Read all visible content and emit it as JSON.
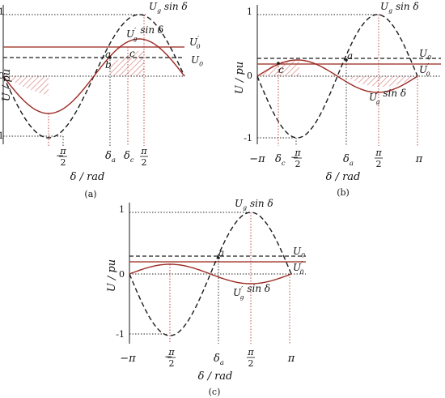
{
  "panels": [
    {
      "id": "a",
      "caption": "(a)",
      "y_axis_label": "U / pu",
      "x_axis_label": "δ / rad",
      "tick_one": "1",
      "tick_zero": "0",
      "tick_minus_one": "-1",
      "x_ticks": [
        {
          "key": "neg_half_pi",
          "num": "π",
          "den": "2",
          "sign": "−"
        },
        {
          "key": "delta_a",
          "text": "δ",
          "sub": "a"
        },
        {
          "key": "delta_c",
          "text": "δ",
          "sub": "c"
        },
        {
          "key": "half_pi",
          "num": "π",
          "den": "2",
          "sign": ""
        }
      ],
      "curve_labels": {
        "ug": {
          "main": "U",
          "sub": "g",
          "tail": " sin δ"
        },
        "ugp": {
          "main": "U",
          "sub": "g",
          "sup": "′",
          "tail": " sin δ"
        },
        "u0p": {
          "main": "U",
          "sub": "0",
          "sup": "′"
        },
        "u0": {
          "main": "U",
          "sub": "0"
        }
      },
      "points": {
        "a": "a",
        "b": "b",
        "c": "c"
      }
    },
    {
      "id": "b",
      "caption": "(b)",
      "y_axis_label": "U / pu",
      "x_axis_label": "δ / rad",
      "tick_one": "1",
      "tick_zero": "0",
      "tick_minus_one": "-1",
      "x_ticks": [
        {
          "key": "neg_pi",
          "text": "−π"
        },
        {
          "key": "delta_c",
          "text": "δ",
          "sub": "c"
        },
        {
          "key": "neg_half_pi",
          "num": "π",
          "den": "2",
          "sign": "−"
        },
        {
          "key": "delta_a",
          "text": "δ",
          "sub": "a"
        },
        {
          "key": "half_pi",
          "num": "π",
          "den": "2",
          "sign": ""
        },
        {
          "key": "pi",
          "text": "π"
        }
      ],
      "curve_labels": {
        "ug": {
          "main": "U",
          "sub": "g",
          "tail": " sin δ"
        },
        "ugp": {
          "main": "U",
          "sub": "g",
          "sup": "′",
          "tail": " sin δ"
        },
        "u0": {
          "main": "U",
          "sub": "0"
        },
        "u0p": {
          "main": "U",
          "sub": "0",
          "sup": "′"
        }
      },
      "points": {
        "a": "a",
        "c": "c"
      }
    },
    {
      "id": "c",
      "caption": "(c)",
      "y_axis_label": "U / pu",
      "x_axis_label": "δ / rad",
      "tick_one": "1",
      "tick_zero": "0",
      "tick_minus_one": "-1",
      "x_ticks": [
        {
          "key": "neg_pi",
          "text": "−π"
        },
        {
          "key": "neg_half_pi",
          "num": "π",
          "den": "2",
          "sign": "−"
        },
        {
          "key": "delta_a",
          "text": "δ",
          "sub": "a"
        },
        {
          "key": "half_pi",
          "num": "π",
          "den": "2",
          "sign": ""
        },
        {
          "key": "pi",
          "text": "π"
        }
      ],
      "curve_labels": {
        "ug": {
          "main": "U",
          "sub": "g",
          "tail": " sin δ"
        },
        "ugp": {
          "main": "U",
          "sub": "g",
          "sup": "′",
          "tail": " sin δ"
        },
        "u0": {
          "main": "U",
          "sub": "0"
        },
        "u0p": {
          "main": "U",
          "sub": "0",
          "sup": "′"
        }
      },
      "points": {
        "a": "a"
      }
    }
  ],
  "colors": {
    "black": "#1a1a1a",
    "red_curve": "#9b2a22",
    "red_line": "#a8483f",
    "hatch": "#d98c88",
    "dotted": "#222222",
    "red_dotted": "#b23a32"
  }
}
